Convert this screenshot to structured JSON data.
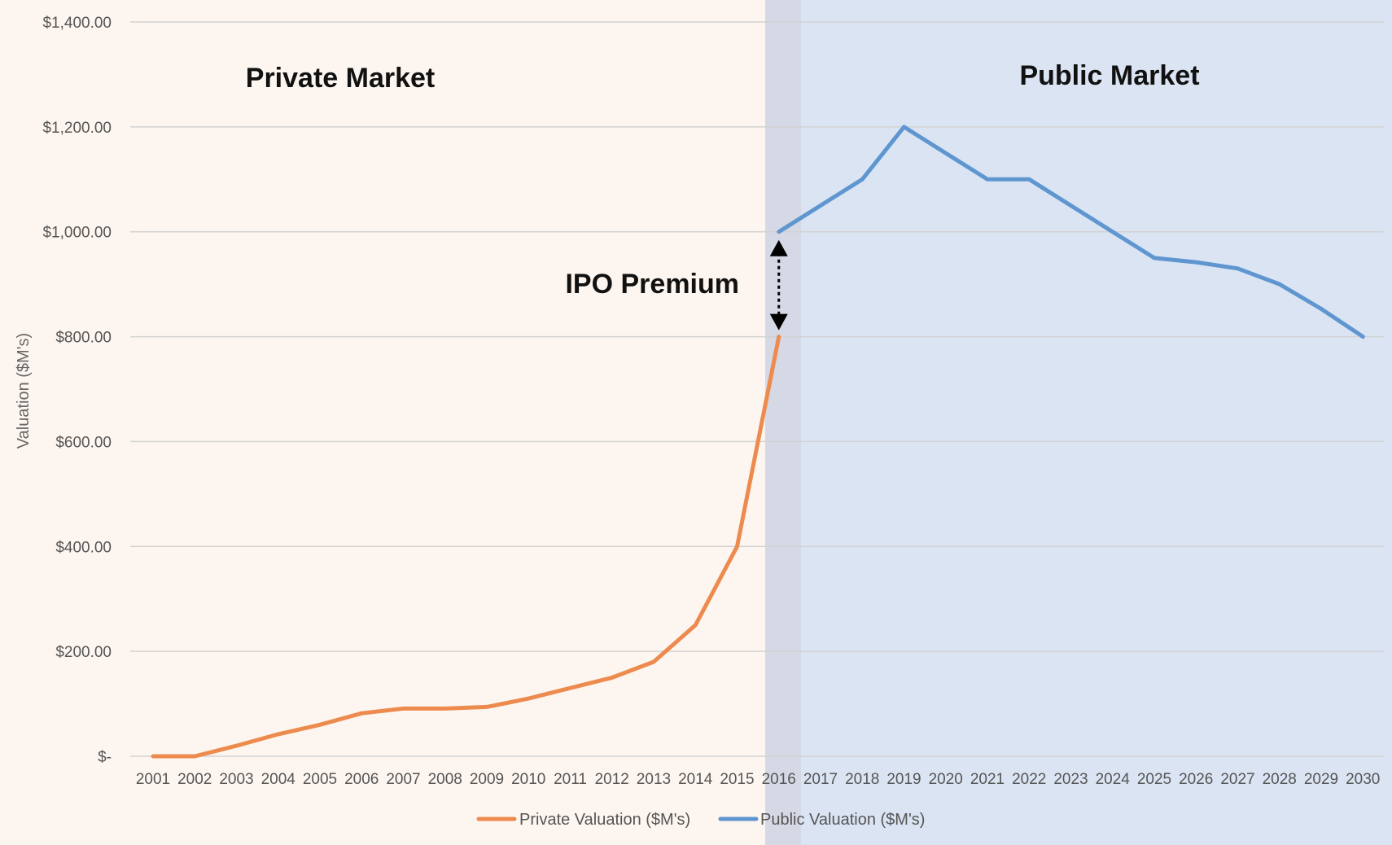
{
  "chart_data": {
    "type": "line",
    "title": "",
    "xlabel": "",
    "ylabel": "Valuation ($M's)",
    "ylim": [
      0,
      1400
    ],
    "y_ticks": [
      0,
      200,
      400,
      600,
      800,
      1000,
      1200,
      1400
    ],
    "y_tick_labels": [
      "$-",
      "$200.00",
      "$400.00",
      "$600.00",
      "$800.00",
      "$1,000.00",
      "$1,200.00",
      "$1,400.00"
    ],
    "categories": [
      "2001",
      "2002",
      "2003",
      "2004",
      "2005",
      "2006",
      "2007",
      "2008",
      "2009",
      "2010",
      "2011",
      "2012",
      "2013",
      "2014",
      "2015",
      "2016",
      "2017",
      "2018",
      "2019",
      "2020",
      "2021",
      "2022",
      "2023",
      "2024",
      "2025",
      "2026",
      "2027",
      "2028",
      "2029",
      "2030"
    ],
    "series": [
      {
        "name": "Private Valuation ($M's)",
        "color": "#ed8b4f",
        "values": [
          0,
          0,
          20,
          42,
          60,
          82,
          91,
          91,
          94,
          110,
          130,
          150,
          180,
          250,
          400,
          800,
          null,
          null,
          null,
          null,
          null,
          null,
          null,
          null,
          null,
          null,
          null,
          null,
          null,
          null
        ]
      },
      {
        "name": "Public Valuation ($M's)",
        "color": "#5f96d0",
        "values": [
          null,
          null,
          null,
          null,
          null,
          null,
          null,
          null,
          null,
          null,
          null,
          null,
          null,
          null,
          null,
          1000,
          1050,
          1100,
          1200,
          1150,
          1100,
          1100,
          1050,
          1000,
          950,
          942,
          930,
          900,
          853,
          800
        ]
      }
    ],
    "grid": true,
    "legend": "bottom-center",
    "regions": [
      {
        "name": "Private Market",
        "from": "2001",
        "to": "2016",
        "color": "#fdf6f0"
      },
      {
        "name": "Public Market",
        "from": "2016",
        "to": "2030",
        "color": "#dae4f3"
      }
    ],
    "annotations": [
      {
        "text": "IPO Premium",
        "x": "2016",
        "y_from": 800,
        "y_to": 1000
      }
    ]
  },
  "labels": {
    "private_market": "Private Market",
    "public_market": "Public Market",
    "ipo_premium": "IPO Premium"
  }
}
